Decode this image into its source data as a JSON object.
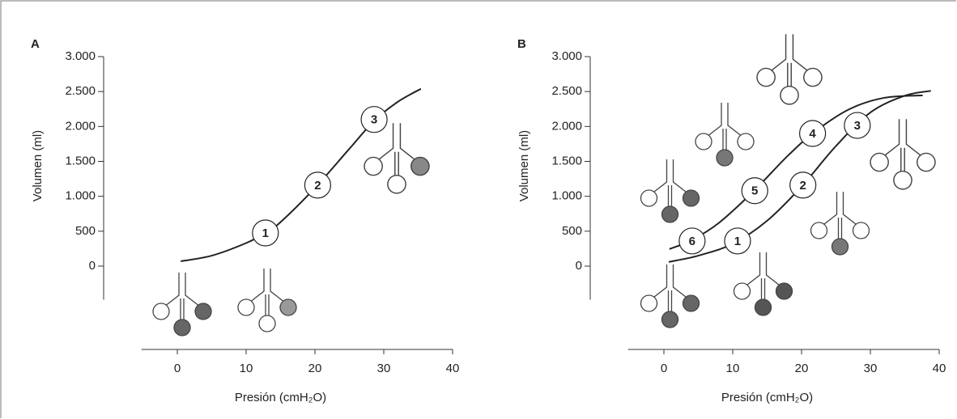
{
  "chart_data": [
    {
      "type": "line",
      "panel": "A",
      "xlabel": "Presión (cmH₂O)",
      "ylabel": "Volumen (ml)",
      "xlim": [
        -5.2,
        40
      ],
      "ylim": [
        -480,
        3000
      ],
      "xticks": [
        0,
        10,
        20,
        30,
        40
      ],
      "yticks": [
        0,
        500,
        {
          "value": 1000,
          "label": "1.000"
        },
        {
          "value": 1500,
          "label": "1.500"
        },
        {
          "value": 2000,
          "label": "2.000"
        },
        {
          "value": 2500,
          "label": "2.500"
        },
        {
          "value": 3000,
          "label": "3.000"
        }
      ],
      "series": [
        {
          "color": "#222222",
          "x": [
            0.5,
            5,
            10,
            12.8,
            15,
            20,
            25,
            28.6,
            32,
            35.4
          ],
          "values": [
            70,
            150,
            330,
            475,
            630,
            1120,
            1680,
            2080,
            2350,
            2540
          ]
        }
      ],
      "annotations": [
        {
          "label": "1",
          "x": 12.8,
          "y": 475
        },
        {
          "label": "2",
          "x": 20.4,
          "y": 1160
        },
        {
          "label": "3",
          "x": 28.6,
          "y": 2100
        }
      ]
    },
    {
      "type": "line",
      "panel": "B",
      "xlabel": "Presión (cmH₂O)",
      "ylabel": "Volumen (ml)",
      "xlim": [
        -5.2,
        40
      ],
      "ylim": [
        -480,
        3000
      ],
      "xticks": [
        0,
        10,
        20,
        30,
        40
      ],
      "yticks": [
        0,
        500,
        {
          "value": 1000,
          "label": "1.000"
        },
        {
          "value": 1500,
          "label": "1.500"
        },
        {
          "value": 2000,
          "label": "2.000"
        },
        {
          "value": 2500,
          "label": "2.500"
        },
        {
          "value": 3000,
          "label": "3.000"
        }
      ],
      "series": [
        {
          "color": "#222222",
          "x": [
            0.7,
            5,
            10,
            15,
            20,
            25,
            30,
            35,
            38.8
          ],
          "values": [
            60,
            150,
            320,
            650,
            1140,
            1720,
            2200,
            2440,
            2510
          ]
        },
        {
          "color": "#222222",
          "x": [
            0.8,
            4,
            8,
            13,
            18,
            22,
            27,
            32,
            37.6
          ],
          "values": [
            245,
            370,
            620,
            1070,
            1580,
            1930,
            2250,
            2410,
            2445
          ]
        }
      ],
      "annotations": [
        {
          "label": "1",
          "x": 10.7,
          "y": 360
        },
        {
          "label": "2",
          "x": 20.2,
          "y": 1160
        },
        {
          "label": "3",
          "x": 28.1,
          "y": 2015
        },
        {
          "label": "4",
          "x": 21.6,
          "y": 1900
        },
        {
          "label": "5",
          "x": 13.2,
          "y": 1080
        },
        {
          "label": "6",
          "x": 4.1,
          "y": 360
        }
      ]
    }
  ]
}
